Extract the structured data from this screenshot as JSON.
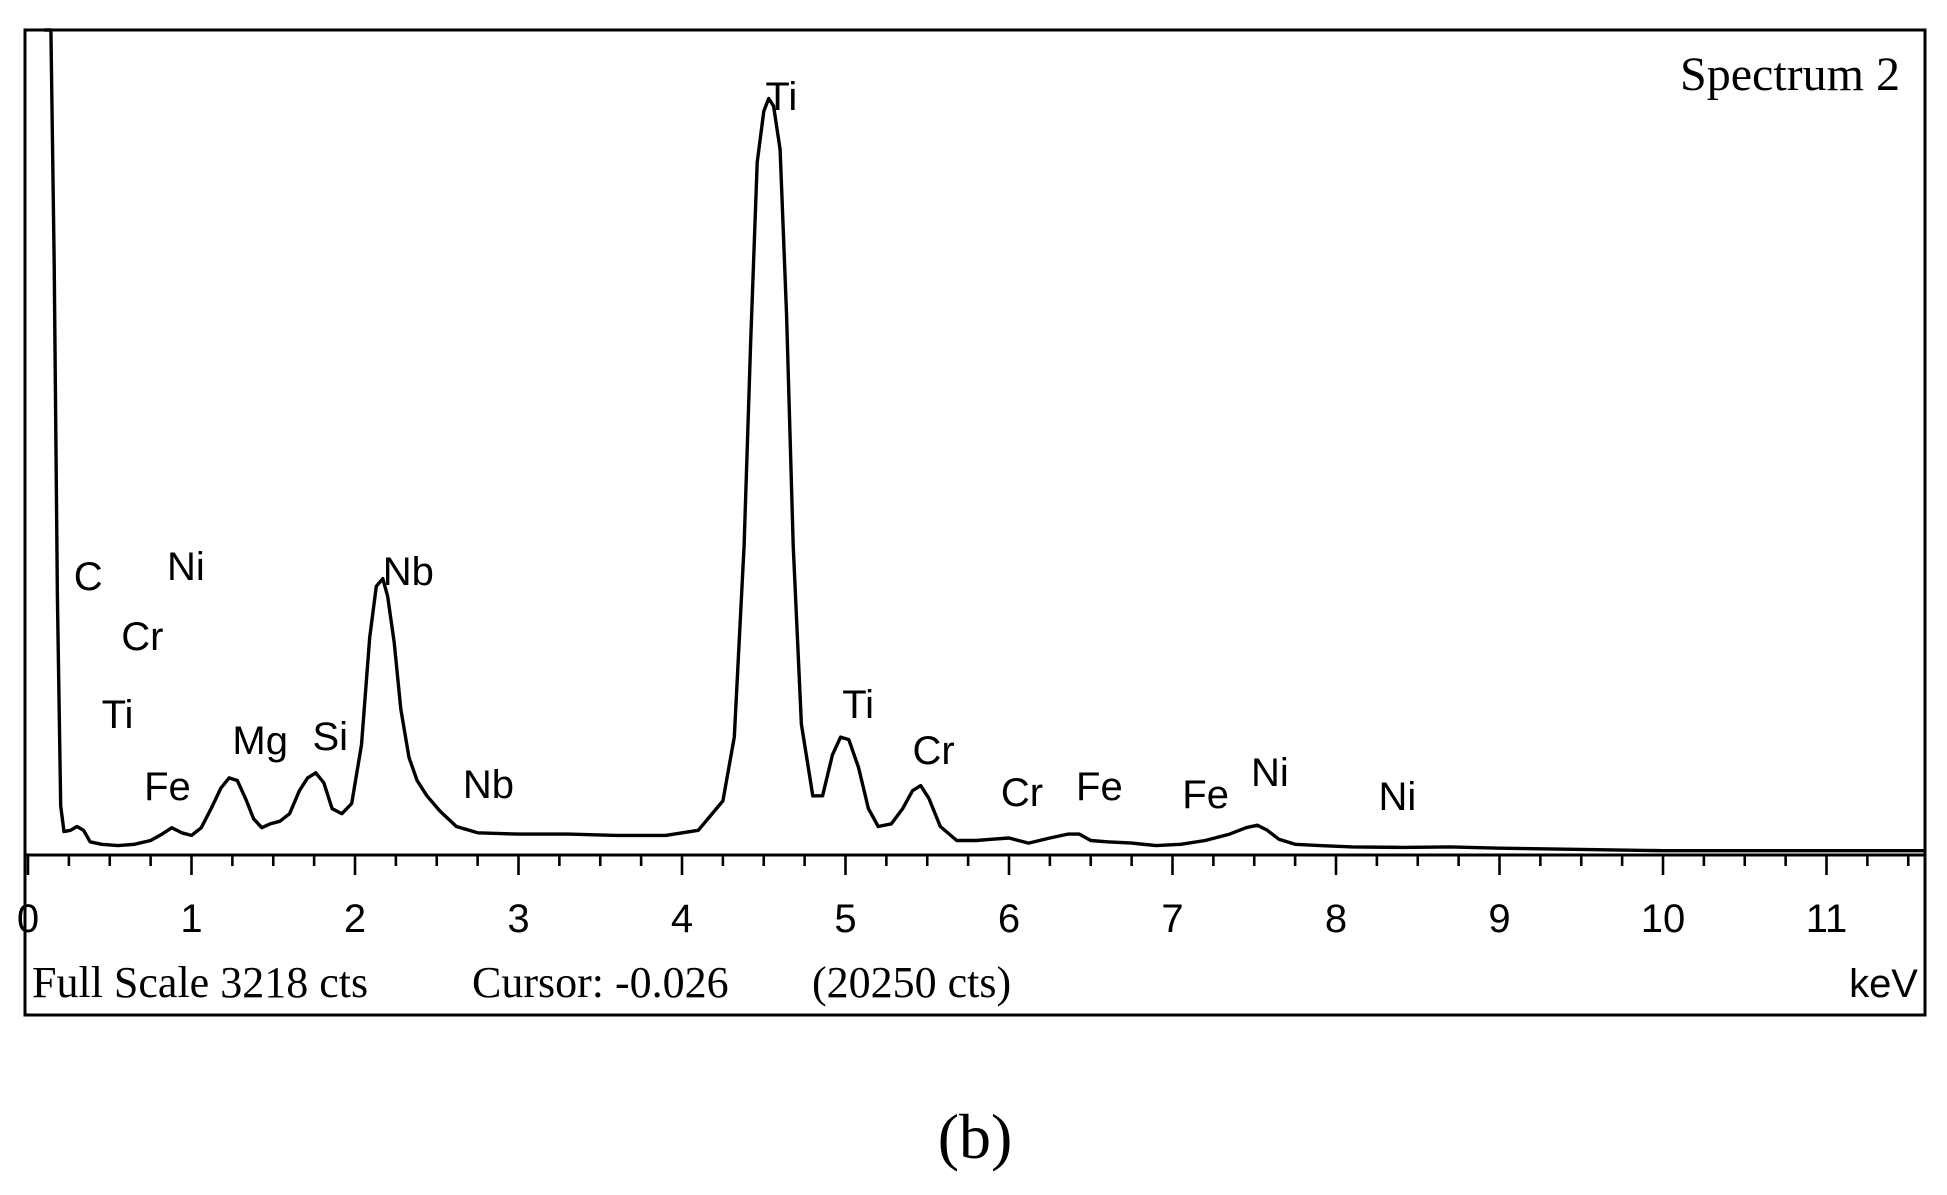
{
  "chart_data": {
    "type": "line",
    "title": "Spectrum 2",
    "xlabel": "keV",
    "ylabel": "",
    "xlim": [
      0,
      11.6
    ],
    "ylim": [
      0,
      3218
    ],
    "x_ticks": [
      0,
      1,
      2,
      3,
      4,
      5,
      6,
      7,
      8,
      9,
      10,
      11
    ],
    "x_tick_labels": [
      "0",
      "1",
      "2",
      "3",
      "4",
      "5",
      "6",
      "7",
      "8",
      "9",
      "10",
      "11"
    ],
    "series": [
      {
        "x": [
          0.1,
          0.14,
          0.16,
          0.18,
          0.2,
          0.22,
          0.26,
          0.3,
          0.34,
          0.38,
          0.45,
          0.55,
          0.65,
          0.75,
          0.82,
          0.88,
          0.94,
          1.0,
          1.06,
          1.12,
          1.18,
          1.23,
          1.28,
          1.33,
          1.38,
          1.43,
          1.48,
          1.54,
          1.6,
          1.66,
          1.71,
          1.76,
          1.81,
          1.86,
          1.92,
          1.98,
          2.04,
          2.09,
          2.13,
          2.17,
          2.2,
          2.24,
          2.28,
          2.33,
          2.38,
          2.44,
          2.52,
          2.62,
          2.75,
          3.0,
          3.3,
          3.6,
          3.9,
          4.1,
          4.25,
          4.32,
          4.38,
          4.42,
          4.46,
          4.5,
          4.53,
          4.56,
          4.6,
          4.64,
          4.68,
          4.73,
          4.8,
          4.86,
          4.92,
          4.97,
          5.02,
          5.08,
          5.14,
          5.2,
          5.28,
          5.35,
          5.41,
          5.46,
          5.51,
          5.58,
          5.68,
          5.8,
          5.9,
          6.0,
          6.12,
          6.25,
          6.36,
          6.43,
          6.5,
          6.6,
          6.75,
          6.9,
          7.05,
          7.2,
          7.35,
          7.45,
          7.52,
          7.58,
          7.65,
          7.75,
          7.9,
          8.1,
          8.4,
          8.7,
          9.0,
          9.5,
          10.0,
          10.5,
          11.0,
          11.4,
          11.6
        ],
        "y": [
          3218,
          3218,
          2300,
          1000,
          180,
          80,
          85,
          100,
          85,
          40,
          30,
          25,
          30,
          45,
          70,
          95,
          75,
          65,
          95,
          170,
          250,
          290,
          280,
          210,
          130,
          95,
          110,
          120,
          150,
          240,
          290,
          310,
          270,
          170,
          150,
          190,
          420,
          840,
          1040,
          1070,
          1000,
          820,
          560,
          370,
          280,
          220,
          160,
          100,
          75,
          70,
          70,
          65,
          65,
          85,
          200,
          450,
          1200,
          2000,
          2700,
          2900,
          2950,
          2920,
          2750,
          2100,
          1200,
          500,
          220,
          220,
          380,
          450,
          440,
          330,
          170,
          100,
          110,
          170,
          240,
          260,
          210,
          100,
          45,
          45,
          50,
          55,
          35,
          55,
          70,
          70,
          45,
          40,
          35,
          25,
          30,
          45,
          70,
          95,
          105,
          85,
          50,
          30,
          25,
          20,
          18,
          20,
          15,
          10,
          5,
          5,
          5,
          5,
          5
        ]
      }
    ],
    "annotations": [
      {
        "text": "C",
        "x": 0.28
      },
      {
        "text": "Ni",
        "x": 0.85
      },
      {
        "text": "Cr",
        "x": 0.57
      },
      {
        "text": "Ti",
        "x": 0.45
      },
      {
        "text": "Fe",
        "x": 0.71
      },
      {
        "text": "Mg",
        "x": 1.25
      },
      {
        "text": "Si",
        "x": 1.74
      },
      {
        "text": "Nb",
        "x": 2.17
      },
      {
        "text": "Nb",
        "x": 2.66
      },
      {
        "text": "Ti",
        "x": 4.51
      },
      {
        "text": "Ti",
        "x": 4.98
      },
      {
        "text": "Cr",
        "x": 5.41
      },
      {
        "text": "Cr",
        "x": 5.95
      },
      {
        "text": "Fe",
        "x": 6.41
      },
      {
        "text": "Fe",
        "x": 7.06
      },
      {
        "text": "Ni",
        "x": 7.48
      },
      {
        "text": "Ni",
        "x": 8.26
      }
    ],
    "grid": false,
    "legend": "none"
  },
  "footer": {
    "full_scale": "Full Scale 3218 cts",
    "cursor": "Cursor: -0.026",
    "cursor_counts": "(20250 cts)",
    "unit": "keV"
  },
  "panel_label": "(b)"
}
